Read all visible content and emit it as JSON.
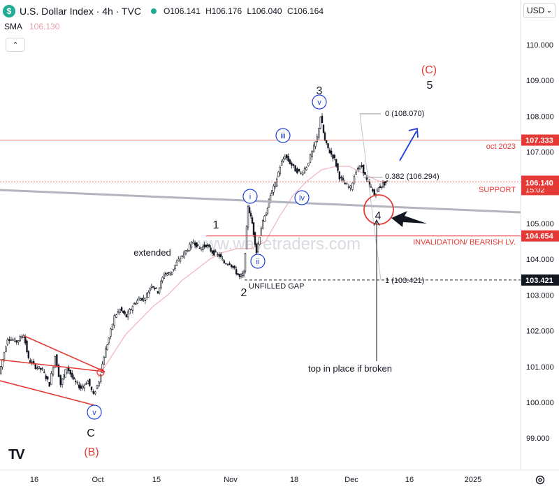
{
  "header": {
    "symbol": "U.S. Dollar Index · 4h · TVC",
    "open_label": "O",
    "open": "106.141",
    "high_label": "H",
    "high": "106.176",
    "low_label": "L",
    "low": "106.040",
    "close_label": "C",
    "close": "106.164"
  },
  "indicator": {
    "name": "SMA",
    "value": "106.130"
  },
  "toolbar": {
    "currency": "USD",
    "collapse_icon": "chevron-up-icon",
    "settings_icon": "gear-icon"
  },
  "watermark": "www.wavetraders.com",
  "colors": {
    "up": "#131722",
    "red": "#e53935",
    "blue": "#1e3fd6",
    "sma": "#f2b8be",
    "grey_line": "#b2b5be"
  },
  "chart_data": {
    "type": "candlestick",
    "price_axis": {
      "ticks": [
        "110.000",
        "109.000",
        "108.000",
        "107.000",
        "106.000",
        "105.000",
        "104.000",
        "103.000",
        "102.000",
        "101.000",
        "100.000",
        "99.000"
      ],
      "range": [
        98.5,
        111.3
      ]
    },
    "time_axis": [
      "16",
      "Oct",
      "15",
      "Nov",
      "18",
      "Dec",
      "16",
      "2025"
    ],
    "price_tags": [
      {
        "label": "107.333",
        "value": 107.333,
        "style": "red"
      },
      {
        "label": "106.164",
        "sub": "15:02",
        "value": 106.164,
        "style": "red"
      },
      {
        "label": "106.140",
        "value": 106.14,
        "style": "red"
      },
      {
        "label": "104.654",
        "value": 104.654,
        "style": "red"
      },
      {
        "label": "103.421",
        "value": 103.421,
        "style": "black"
      }
    ],
    "levels": [
      {
        "label": "oct 2023",
        "value": 107.333
      },
      {
        "label": "SUPPORT",
        "value": 106.164
      },
      {
        "label": "INVALIDATION/ BEARISH LV.",
        "value": 104.654
      },
      {
        "label": "UNFILLED GAP",
        "value": 103.421
      }
    ],
    "fibonacci": [
      {
        "label": "0 (108.070)",
        "value": 108.07
      },
      {
        "label": "0.382 (106.294)",
        "value": 106.294
      },
      {
        "label": "1 (103.421)",
        "value": 103.421
      }
    ],
    "wave_labels": [
      "(C)",
      "5",
      "3",
      "(iii)",
      "1",
      "(i)",
      "(iv)",
      "4",
      "extended",
      "(ii)",
      "2",
      "(v)",
      "C",
      "(B)",
      "(v)"
    ],
    "annotations": [
      "top in place if broken"
    ],
    "path": [
      [
        0,
        100.8
      ],
      [
        12,
        101.8
      ],
      [
        25,
        101.7
      ],
      [
        35,
        101.9
      ],
      [
        42,
        101.2
      ],
      [
        52,
        101.0
      ],
      [
        62,
        100.9
      ],
      [
        72,
        100.5
      ],
      [
        80,
        101.3
      ],
      [
        88,
        100.5
      ],
      [
        97,
        101.0
      ],
      [
        107,
        100.6
      ],
      [
        117,
        100.4
      ],
      [
        127,
        100.6
      ],
      [
        135,
        100.2
      ],
      [
        143,
        100.6
      ],
      [
        150,
        101.3
      ],
      [
        157,
        101.8
      ],
      [
        165,
        102.4
      ],
      [
        173,
        102.6
      ],
      [
        182,
        102.4
      ],
      [
        191,
        102.7
      ],
      [
        200,
        102.9
      ],
      [
        209,
        102.9
      ],
      [
        218,
        103.3
      ],
      [
        227,
        103.1
      ],
      [
        236,
        103.6
      ],
      [
        245,
        103.6
      ],
      [
        254,
        103.9
      ],
      [
        262,
        104.1
      ],
      [
        270,
        104.3
      ],
      [
        278,
        104.5
      ],
      [
        287,
        104.3
      ],
      [
        296,
        104.4
      ],
      [
        305,
        104.2
      ],
      [
        315,
        104.1
      ],
      [
        322,
        103.9
      ],
      [
        330,
        103.9
      ],
      [
        337,
        103.7
      ],
      [
        344,
        103.5
      ],
      [
        350,
        103.6
      ],
      [
        356,
        105.5
      ],
      [
        362,
        105.0
      ],
      [
        368,
        104.2
      ],
      [
        375,
        104.9
      ],
      [
        382,
        105.3
      ],
      [
        388,
        105.8
      ],
      [
        395,
        106.1
      ],
      [
        402,
        106.6
      ],
      [
        409,
        106.9
      ],
      [
        416,
        106.7
      ],
      [
        424,
        106.5
      ],
      [
        432,
        106.4
      ],
      [
        440,
        106.6
      ],
      [
        448,
        107.0
      ],
      [
        455,
        107.4
      ],
      [
        460,
        108.0
      ],
      [
        466,
        107.3
      ],
      [
        473,
        107.0
      ],
      [
        480,
        106.8
      ],
      [
        487,
        106.3
      ],
      [
        495,
        106.1
      ],
      [
        503,
        106.0
      ],
      [
        511,
        106.5
      ],
      [
        519,
        106.6
      ],
      [
        526,
        106.2
      ],
      [
        532,
        106.0
      ],
      [
        537,
        105.8
      ],
      [
        543,
        106.0
      ],
      [
        549,
        106.1
      ],
      [
        555,
        106.164
      ]
    ],
    "sma_path": [
      [
        140,
        100.7
      ],
      [
        160,
        101.3
      ],
      [
        180,
        101.9
      ],
      [
        200,
        102.3
      ],
      [
        220,
        102.7
      ],
      [
        240,
        103.0
      ],
      [
        260,
        103.4
      ],
      [
        280,
        103.7
      ],
      [
        300,
        104.0
      ],
      [
        320,
        104.2
      ],
      [
        340,
        104.3
      ],
      [
        360,
        104.3
      ],
      [
        380,
        104.5
      ],
      [
        400,
        105.2
      ],
      [
        420,
        105.8
      ],
      [
        440,
        106.2
      ],
      [
        460,
        106.5
      ],
      [
        480,
        106.6
      ],
      [
        500,
        106.6
      ],
      [
        520,
        106.4
      ],
      [
        540,
        106.2
      ],
      [
        555,
        106.13
      ]
    ]
  }
}
